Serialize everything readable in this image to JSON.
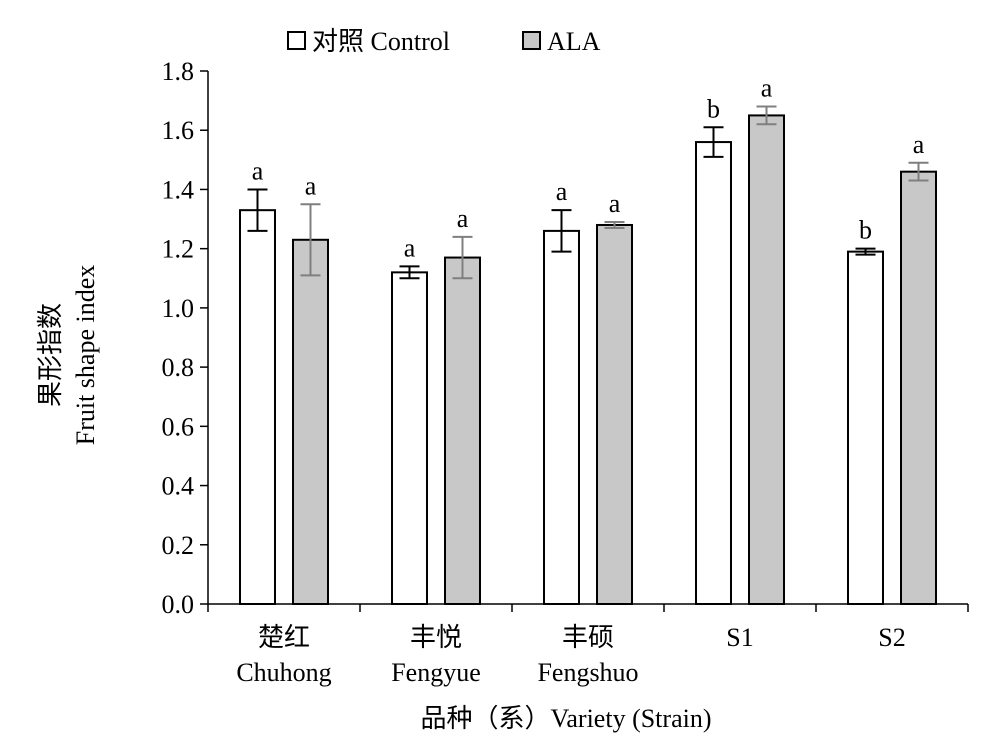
{
  "chart_data": {
    "type": "bar",
    "title": "",
    "xlabel": "品种（系）Variety (Strain)",
    "ylabel": [
      "果形指数",
      "Fruit shape index"
    ],
    "ylim": [
      0,
      1.8
    ],
    "yticks": [
      0.0,
      0.2,
      0.4,
      0.6,
      0.8,
      1.0,
      1.2,
      1.4,
      1.6,
      1.8
    ],
    "ytick_labels": [
      "0.0",
      "0.2",
      "0.4",
      "0.6",
      "0.8",
      "1.0",
      "1.2",
      "1.4",
      "1.6",
      "1.8"
    ],
    "grid": false,
    "legend_position": "top",
    "categories": [
      {
        "cn": "楚红",
        "en": "Chuhong"
      },
      {
        "cn": "丰悦",
        "en": "Fengyue"
      },
      {
        "cn": "丰硕",
        "en": "Fengshuo"
      },
      {
        "cn": "S1",
        "en": ""
      },
      {
        "cn": "S2",
        "en": ""
      }
    ],
    "series": [
      {
        "name": "对照 Control",
        "color": "#ffffff",
        "error_color": "#000000",
        "values": [
          1.33,
          1.12,
          1.26,
          1.56,
          1.19
        ],
        "errors": [
          0.07,
          0.02,
          0.07,
          0.05,
          0.01
        ],
        "labels": [
          "a",
          "a",
          "a",
          "b",
          "b"
        ]
      },
      {
        "name": "ALA",
        "color": "#c8c8c8",
        "error_color": "#7f7f7f",
        "values": [
          1.23,
          1.17,
          1.28,
          1.65,
          1.46
        ],
        "errors": [
          0.12,
          0.07,
          0.01,
          0.03,
          0.03
        ],
        "labels": [
          "a",
          "a",
          "a",
          "a",
          "a"
        ]
      }
    ]
  }
}
